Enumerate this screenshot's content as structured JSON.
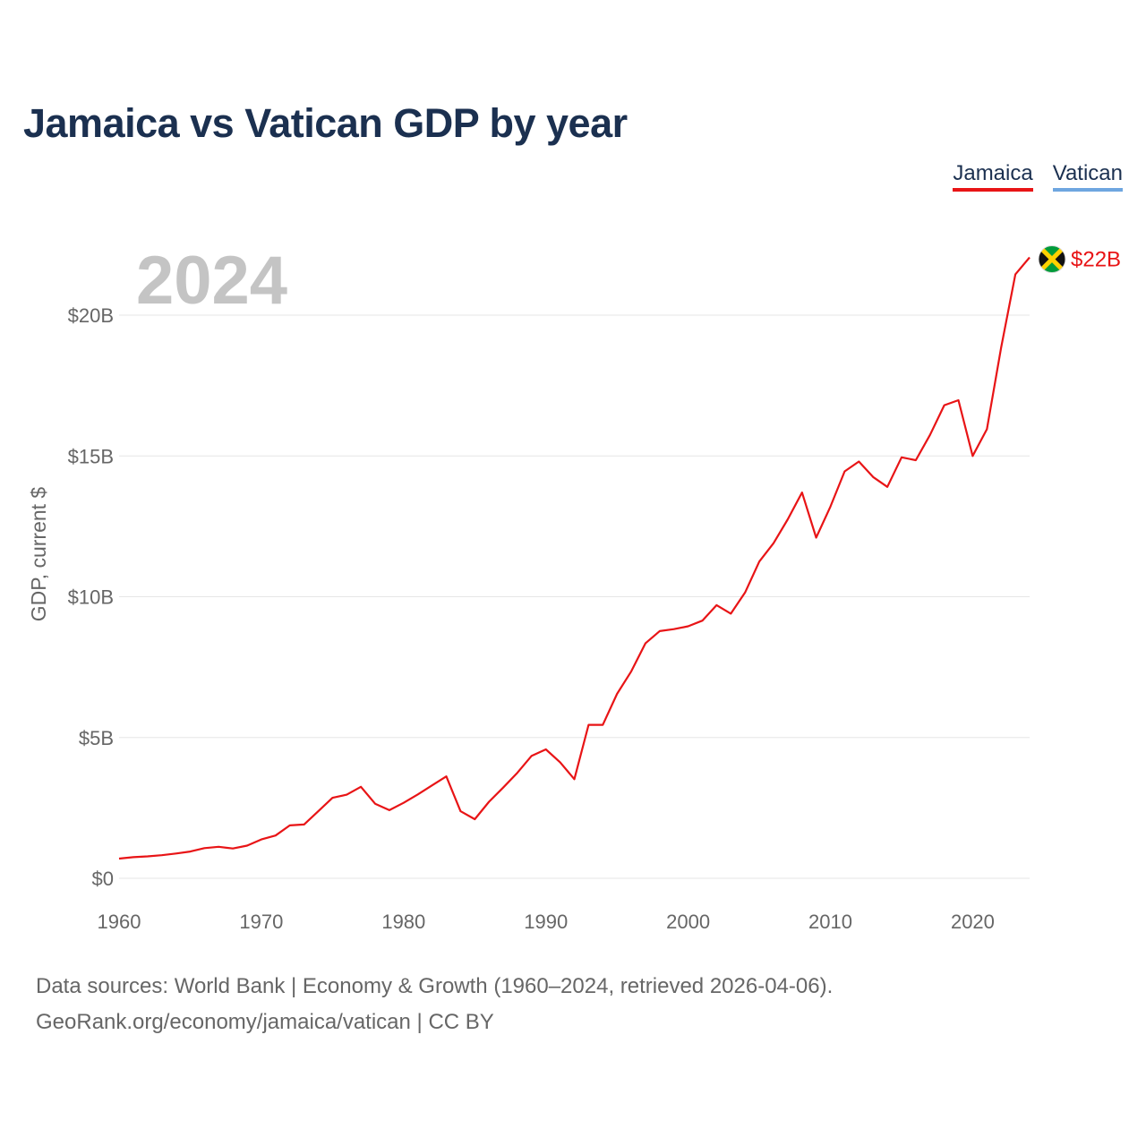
{
  "title": "Jamaica vs Vatican GDP by year",
  "legend": [
    {
      "name": "Jamaica",
      "color": "#e81416"
    },
    {
      "name": "Vatican",
      "color": "#6ea6e0"
    }
  ],
  "footer": {
    "line1": "Data sources: World Bank | Economy & Growth (1960–2024, retrieved 2026-04-06).",
    "line2": "GeoRank.org/economy/jamaica/vatican | CC BY"
  },
  "chart_data": {
    "type": "line",
    "title": "Jamaica vs Vatican GDP by year",
    "year_label": "2024",
    "xlabel": "",
    "ylabel": "GDP, current $",
    "xlim": [
      1960,
      2024
    ],
    "ylim": [
      0,
      22
    ],
    "x_ticks": [
      1960,
      1970,
      1980,
      1990,
      2000,
      2010,
      2020
    ],
    "y_ticks": [
      0,
      5,
      10,
      15,
      20
    ],
    "y_tick_labels": [
      "$0",
      "$5B",
      "$10B",
      "$15B",
      "$20B"
    ],
    "grid": true,
    "legend_position": "top-right",
    "end_label": "$22B",
    "series": [
      {
        "name": "Jamaica",
        "color": "#e81416",
        "x": [
          1960,
          1961,
          1962,
          1963,
          1964,
          1965,
          1966,
          1967,
          1968,
          1969,
          1970,
          1971,
          1972,
          1973,
          1974,
          1975,
          1976,
          1977,
          1978,
          1979,
          1980,
          1981,
          1982,
          1983,
          1984,
          1985,
          1986,
          1987,
          1988,
          1989,
          1990,
          1991,
          1992,
          1993,
          1994,
          1995,
          1996,
          1997,
          1998,
          1999,
          2000,
          2001,
          2002,
          2003,
          2004,
          2005,
          2006,
          2007,
          2008,
          2009,
          2010,
          2011,
          2012,
          2013,
          2014,
          2015,
          2016,
          2017,
          2018,
          2019,
          2020,
          2021,
          2022,
          2023,
          2024
        ],
        "values": [
          0.7,
          0.75,
          0.78,
          0.82,
          0.88,
          0.95,
          1.07,
          1.12,
          1.06,
          1.16,
          1.38,
          1.52,
          1.88,
          1.91,
          2.38,
          2.86,
          2.97,
          3.25,
          2.65,
          2.42,
          2.68,
          2.98,
          3.3,
          3.62,
          2.38,
          2.1,
          2.72,
          3.22,
          3.75,
          4.35,
          4.58,
          4.12,
          3.52,
          5.45,
          5.45,
          6.55,
          7.35,
          8.35,
          8.78,
          8.85,
          8.95,
          9.15,
          9.7,
          9.4,
          10.15,
          11.25,
          11.9,
          12.75,
          13.7,
          12.1,
          13.2,
          14.45,
          14.8,
          14.25,
          13.9,
          14.95,
          14.85,
          15.75,
          16.8,
          16.98,
          15.0,
          15.95,
          18.85,
          21.45,
          22.05
        ]
      },
      {
        "name": "Vatican",
        "color": "#6ea6e0",
        "x": [],
        "values": []
      }
    ]
  }
}
